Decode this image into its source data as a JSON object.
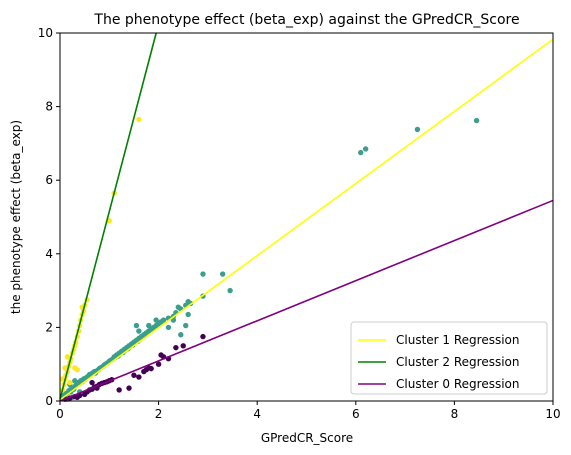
{
  "chart_data": {
    "type": "scatter",
    "title": "The phenotype effect (beta_exp) against the GPredCR_Score",
    "xlabel": "GPredCR_Score",
    "ylabel": "the phenotype effect (beta_exp)",
    "xlim": [
      0,
      10
    ],
    "ylim": [
      0,
      10
    ],
    "xticks": [
      "0",
      "2",
      "4",
      "6",
      "8",
      "10"
    ],
    "yticks": [
      "0",
      "2",
      "4",
      "6",
      "8",
      "10"
    ],
    "grid": false,
    "legend_position": "lower-right",
    "regressions": [
      {
        "name": "Cluster 1 Regression",
        "color": "#ffff00",
        "slope": 0.98,
        "intercept": 0.03
      },
      {
        "name": "Cluster 2 Regression",
        "color": "#008000",
        "slope": 5.1,
        "intercept": 0.05
      },
      {
        "name": "Cluster 0 Regression",
        "color": "#800080",
        "slope": 0.545,
        "intercept": 0.0
      }
    ],
    "series": [
      {
        "cluster": "1",
        "color": "#3b9e8e",
        "points": [
          [
            0.05,
            0.1
          ],
          [
            0.08,
            0.15
          ],
          [
            0.1,
            0.12
          ],
          [
            0.12,
            0.2
          ],
          [
            0.15,
            0.22
          ],
          [
            0.18,
            0.28
          ],
          [
            0.2,
            0.3
          ],
          [
            0.22,
            0.25
          ],
          [
            0.25,
            0.35
          ],
          [
            0.28,
            0.32
          ],
          [
            0.3,
            0.38
          ],
          [
            0.32,
            0.42
          ],
          [
            0.35,
            0.45
          ],
          [
            0.38,
            0.5
          ],
          [
            0.4,
            0.48
          ],
          [
            0.42,
            0.55
          ],
          [
            0.45,
            0.52
          ],
          [
            0.48,
            0.6
          ],
          [
            0.5,
            0.58
          ],
          [
            0.52,
            0.62
          ],
          [
            0.55,
            0.65
          ],
          [
            0.58,
            0.68
          ],
          [
            0.6,
            0.72
          ],
          [
            0.62,
            0.7
          ],
          [
            0.65,
            0.75
          ],
          [
            0.68,
            0.78
          ],
          [
            0.7,
            0.8
          ],
          [
            0.72,
            0.76
          ],
          [
            0.75,
            0.82
          ],
          [
            0.78,
            0.85
          ],
          [
            0.8,
            0.88
          ],
          [
            0.82,
            0.9
          ],
          [
            0.85,
            0.92
          ],
          [
            0.88,
            0.95
          ],
          [
            0.9,
            0.98
          ],
          [
            0.92,
            1.0
          ],
          [
            0.95,
            1.02
          ],
          [
            0.98,
            1.05
          ],
          [
            1.0,
            1.08
          ],
          [
            1.02,
            1.1
          ],
          [
            1.05,
            1.12
          ],
          [
            1.08,
            1.15
          ],
          [
            1.1,
            1.2
          ],
          [
            1.12,
            1.18
          ],
          [
            1.15,
            1.25
          ],
          [
            1.18,
            1.22
          ],
          [
            1.2,
            1.3
          ],
          [
            1.22,
            1.28
          ],
          [
            1.25,
            1.35
          ],
          [
            1.28,
            1.32
          ],
          [
            1.3,
            1.4
          ],
          [
            1.32,
            1.38
          ],
          [
            1.35,
            1.45
          ],
          [
            1.38,
            1.42
          ],
          [
            1.4,
            1.5
          ],
          [
            1.42,
            1.48
          ],
          [
            1.45,
            1.55
          ],
          [
            1.48,
            1.52
          ],
          [
            1.5,
            1.6
          ],
          [
            1.52,
            1.58
          ],
          [
            1.55,
            1.65
          ],
          [
            1.58,
            1.62
          ],
          [
            1.6,
            1.7
          ],
          [
            1.62,
            1.68
          ],
          [
            1.65,
            1.75
          ],
          [
            1.7,
            1.8
          ],
          [
            1.72,
            1.78
          ],
          [
            1.75,
            1.85
          ],
          [
            1.8,
            1.9
          ],
          [
            1.85,
            1.95
          ],
          [
            1.9,
            2.0
          ],
          [
            1.95,
            2.05
          ],
          [
            2.0,
            2.1
          ],
          [
            2.05,
            2.15
          ],
          [
            2.1,
            2.2
          ],
          [
            2.2,
            2.25
          ],
          [
            2.3,
            2.3
          ],
          [
            2.35,
            2.4
          ],
          [
            2.4,
            2.55
          ],
          [
            2.45,
            2.5
          ],
          [
            2.55,
            2.6
          ],
          [
            2.6,
            2.7
          ],
          [
            2.65,
            2.65
          ],
          [
            2.2,
            2.0
          ],
          [
            2.3,
            2.2
          ],
          [
            2.45,
            1.8
          ],
          [
            2.55,
            2.05
          ],
          [
            2.6,
            2.35
          ],
          [
            1.55,
            2.05
          ],
          [
            1.6,
            1.9
          ],
          [
            1.8,
            2.05
          ],
          [
            1.95,
            2.2
          ],
          [
            2.9,
            3.45
          ],
          [
            2.9,
            2.85
          ],
          [
            3.3,
            3.45
          ],
          [
            3.45,
            3.0
          ],
          [
            6.1,
            6.75
          ],
          [
            6.2,
            6.85
          ],
          [
            7.25,
            7.38
          ],
          [
            8.45,
            7.62
          ],
          [
            0.15,
            0.05
          ],
          [
            0.25,
            0.1
          ],
          [
            0.3,
            0.55
          ],
          [
            0.2,
            0.45
          ],
          [
            0.4,
            0.25
          ]
        ]
      },
      {
        "cluster": "2",
        "color": "#fde725",
        "points": [
          [
            0.05,
            0.3
          ],
          [
            0.08,
            0.45
          ],
          [
            0.1,
            0.6
          ],
          [
            0.12,
            0.7
          ],
          [
            0.15,
            0.8
          ],
          [
            0.18,
            0.95
          ],
          [
            0.2,
            1.05
          ],
          [
            0.22,
            1.15
          ],
          [
            0.25,
            1.3
          ],
          [
            0.28,
            1.4
          ],
          [
            0.3,
            1.5
          ],
          [
            0.32,
            1.6
          ],
          [
            0.35,
            1.75
          ],
          [
            0.38,
            1.9
          ],
          [
            0.4,
            2.05
          ],
          [
            0.42,
            2.2
          ],
          [
            0.45,
            2.35
          ],
          [
            0.48,
            2.45
          ],
          [
            0.5,
            2.6
          ],
          [
            0.55,
            2.75
          ],
          [
            0.45,
            2.55
          ],
          [
            1.0,
            4.9
          ],
          [
            1.1,
            5.65
          ],
          [
            1.6,
            7.65
          ],
          [
            0.1,
            0.9
          ],
          [
            0.05,
            0.6
          ],
          [
            0.15,
            1.2
          ],
          [
            0.2,
            0.5
          ],
          [
            0.3,
            0.9
          ],
          [
            0.35,
            0.85
          ]
        ]
      },
      {
        "cluster": "0",
        "color": "#440154",
        "points": [
          [
            0.1,
            0.05
          ],
          [
            0.2,
            0.08
          ],
          [
            0.3,
            0.12
          ],
          [
            0.4,
            0.15
          ],
          [
            0.5,
            0.18
          ],
          [
            0.35,
            0.1
          ],
          [
            0.55,
            0.25
          ],
          [
            0.6,
            0.3
          ],
          [
            0.65,
            0.32
          ],
          [
            0.7,
            0.38
          ],
          [
            0.75,
            0.4
          ],
          [
            0.8,
            0.45
          ],
          [
            0.85,
            0.48
          ],
          [
            0.9,
            0.5
          ],
          [
            0.95,
            0.52
          ],
          [
            1.0,
            0.55
          ],
          [
            1.05,
            0.58
          ],
          [
            1.2,
            0.3
          ],
          [
            1.4,
            0.35
          ],
          [
            1.5,
            0.7
          ],
          [
            1.6,
            0.65
          ],
          [
            1.7,
            0.8
          ],
          [
            1.75,
            0.85
          ],
          [
            1.8,
            0.9
          ],
          [
            1.85,
            0.88
          ],
          [
            2.0,
            1.0
          ],
          [
            2.05,
            1.25
          ],
          [
            2.1,
            1.2
          ],
          [
            2.2,
            1.15
          ],
          [
            2.35,
            1.45
          ],
          [
            2.5,
            1.5
          ],
          [
            2.9,
            1.75
          ],
          [
            0.65,
            0.5
          ],
          [
            0.75,
            0.35
          ]
        ]
      }
    ]
  }
}
